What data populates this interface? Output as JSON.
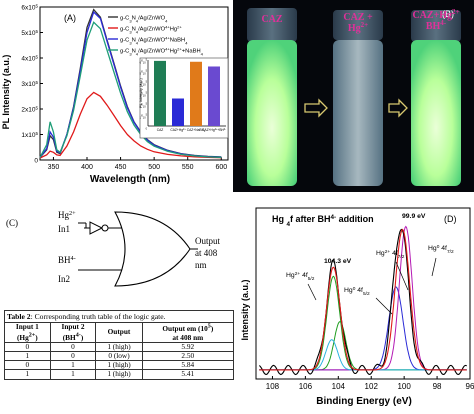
{
  "panel_a": {
    "label": "(A)",
    "ylabel": "PL Intensity (a.u.)",
    "xlabel": "Wavelength (nm)",
    "y_ticks": [
      {
        "m": "0",
        "e": ""
      },
      {
        "m": "1x10",
        "e": "5"
      },
      {
        "m": "2x10",
        "e": "5"
      },
      {
        "m": "3x10",
        "e": "5"
      },
      {
        "m": "4x10",
        "e": "5"
      },
      {
        "m": "5x10",
        "e": "5"
      },
      {
        "m": "6x10",
        "e": "5"
      }
    ],
    "x_ticks": [
      "350",
      "400",
      "450",
      "500",
      "550",
      "600"
    ],
    "legend": [
      {
        "label": "g-C3N4/Ag/ZnWO4",
        "color": "#333333"
      },
      {
        "label": "g-C3N4/Ag/ZnWO4+Hg2+",
        "color": "#e01a1a"
      },
      {
        "label": "g-C3N4/Ag/ZnWO4+NaBH4",
        "color": "#2a2ad6"
      },
      {
        "label": "g-C3N4/Ag/ZnWO4+Hg2++NaBH4",
        "color": "#1f9e78"
      }
    ],
    "inset": {
      "ylabel": "PL Intensity (a.u.)",
      "y_ticks": [
        "0",
        "1x10^5",
        "2x10^5",
        "3x10^5",
        "4x10^5",
        "5x10^5",
        "6x10^5"
      ],
      "categories": [
        "CAZ",
        "CAZ+Hg2+",
        "CAZ+NaBH4",
        "CAZ+Hg2++BH4-"
      ],
      "values": [
        5.92,
        2.5,
        5.84,
        5.41
      ],
      "colors": [
        "#1f7d55",
        "#2a2ad6",
        "#e07a1a",
        "#6a4ad0"
      ]
    }
  },
  "chart_data": {
    "type": "line",
    "xlabel": "Wavelength (nm)",
    "ylabel": "PL Intensity (a.u.)",
    "xlim": [
      330,
      610
    ],
    "ylim": [
      0,
      600000
    ],
    "x": [
      330,
      340,
      345,
      350,
      355,
      360,
      370,
      380,
      390,
      400,
      410,
      420,
      430,
      440,
      450,
      460,
      470,
      480,
      490,
      500,
      520,
      540,
      560,
      580,
      600
    ],
    "series": [
      {
        "name": "g-C3N4/Ag/ZnWO4",
        "color": "#333333",
        "values": [
          10000,
          40000,
          95000,
          80000,
          30000,
          25000,
          100000,
          210000,
          360000,
          520000,
          590000,
          560000,
          470000,
          380000,
          290000,
          210000,
          150000,
          110000,
          80000,
          60000,
          38000,
          25000,
          18000,
          14000,
          12000
        ]
      },
      {
        "name": "g-C3N4/Ag/ZnWO4+Hg2+",
        "color": "#e01a1a",
        "values": [
          8000,
          20000,
          35000,
          30000,
          20000,
          18000,
          55000,
          110000,
          180000,
          240000,
          265000,
          250000,
          215000,
          175000,
          135000,
          100000,
          75000,
          55000,
          42000,
          32000,
          22000,
          16000,
          12000,
          10000,
          9000
        ]
      },
      {
        "name": "g-C3N4/Ag/ZnWO4+NaBH4",
        "color": "#2a2ad6",
        "values": [
          10000,
          45000,
          110000,
          90000,
          35000,
          28000,
          100000,
          205000,
          350000,
          500000,
          580000,
          555000,
          465000,
          375000,
          285000,
          205000,
          148000,
          108000,
          78000,
          58000,
          37000,
          24000,
          17000,
          13000,
          11000
        ]
      },
      {
        "name": "g-C3N4/Ag/ZnWO4+Hg2++NaBH4",
        "color": "#1f9e78",
        "values": [
          10000,
          60000,
          150000,
          110000,
          40000,
          30000,
          95000,
          195000,
          330000,
          470000,
          540000,
          515000,
          430000,
          345000,
          262000,
          190000,
          137000,
          100000,
          72000,
          54000,
          34000,
          22000,
          16000,
          12000,
          10000
        ]
      }
    ]
  },
  "panel_b": {
    "label": "(B)",
    "vial_labels": [
      {
        "lines": [
          "CAZ"
        ]
      },
      {
        "lines": [
          "CAZ +",
          "Hg2+"
        ]
      },
      {
        "lines": [
          "CAZ+Hg2+",
          "BH4-"
        ]
      }
    ]
  },
  "panel_c": {
    "label": "(C)",
    "in1_ion": "Hg2+",
    "in1_name": "In1",
    "in2_ion": "BH4-",
    "in2_name": "In2",
    "output_lines": [
      "Output",
      "at 408",
      "nm"
    ]
  },
  "table": {
    "caption_bold": "Table 2",
    "caption_rest": ": Corresponding truth table of the logic gate.",
    "headers": [
      [
        "Input 1",
        "(Hg2+)"
      ],
      [
        "Input 2",
        "(BH4-)"
      ],
      [
        "Output",
        ""
      ],
      [
        "Output em (10^5)",
        "at 408 nm"
      ]
    ],
    "rows": [
      [
        "0",
        "0",
        "1 (high)",
        "5.92"
      ],
      [
        "1",
        "0",
        "0 (low)",
        "2.50"
      ],
      [
        "0",
        "1",
        "1 (high)",
        "5.84"
      ],
      [
        "1",
        "1",
        "1 (high)",
        "5.41"
      ]
    ]
  },
  "panel_d": {
    "label": "(D)",
    "title": "Hg 4f after BH4- addition",
    "xlabel": "Binding Energy (eV)",
    "ylabel": "Intensity (a.u.)",
    "x_ticks": [
      "108",
      "106",
      "104",
      "102",
      "100",
      "98",
      "96"
    ],
    "annotations": [
      {
        "text": "99.9 eV",
        "color": "#000000"
      },
      {
        "text": "104.3 eV",
        "color": "#000000"
      },
      {
        "text": "Hg2+ 4f7/2",
        "color": "#000000"
      },
      {
        "text": "Hg0 4f7/2",
        "color": "#000000"
      },
      {
        "text": "Hg2+ 4f5/2",
        "color": "#000000"
      },
      {
        "text": "Hg0 4f5/2",
        "color": "#000000"
      }
    ]
  }
}
